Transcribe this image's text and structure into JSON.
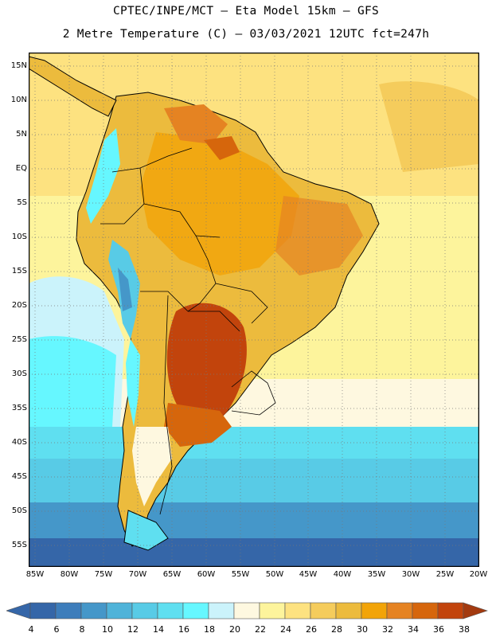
{
  "header": {
    "line1": "CPTEC/INPE/MCT –  Eta Model 15km – GFS",
    "line2": "2 Metre Temperature (C) – 03/03/2021 12UTC fct=247h"
  },
  "axes": {
    "lat_labels": [
      "15N",
      "10N",
      "5N",
      "EQ",
      "5S",
      "10S",
      "15S",
      "20S",
      "25S",
      "30S",
      "35S",
      "40S",
      "45S",
      "50S",
      "55S"
    ],
    "lat_values": [
      15,
      10,
      5,
      0,
      -5,
      -10,
      -15,
      -20,
      -25,
      -30,
      -35,
      -40,
      -45,
      -50,
      -55
    ],
    "lon_labels": [
      "85W",
      "80W",
      "75W",
      "70W",
      "65W",
      "60W",
      "55W",
      "50W",
      "45W",
      "40W",
      "35W",
      "30W",
      "25W",
      "20W"
    ],
    "lon_values": [
      -85,
      -80,
      -75,
      -70,
      -65,
      -60,
      -55,
      -50,
      -45,
      -40,
      -35,
      -30,
      -25,
      -20
    ],
    "lon_range": [
      -86,
      -20
    ],
    "lat_range": [
      -58,
      17
    ]
  },
  "colorbar": {
    "labels": [
      "4",
      "6",
      "8",
      "10",
      "12",
      "14",
      "16",
      "18",
      "20",
      "22",
      "24",
      "26",
      "28",
      "30",
      "32",
      "34",
      "36",
      "38"
    ],
    "colors": [
      "#3566a8",
      "#3d7dbb",
      "#4597c9",
      "#4fb3d9",
      "#58cbe6",
      "#5fdff0",
      "#66f7ff",
      "#cbf3fb",
      "#fef8e0",
      "#fdf49c",
      "#fde280",
      "#f5cc5c",
      "#ecbb3d",
      "#f2a408",
      "#e58322",
      "#d6660c",
      "#c2440c",
      "#a33a0f"
    ]
  }
}
